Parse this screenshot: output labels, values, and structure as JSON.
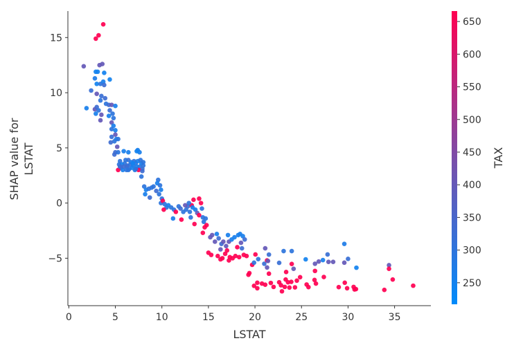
{
  "chart_data": {
    "type": "scatter",
    "title": "",
    "xlabel": "LSTAT",
    "ylabel": [
      "SHAP value for",
      "LSTAT"
    ],
    "xlim": [
      -0.1,
      38.9
    ],
    "ylim": [
      -9.3,
      17.4
    ],
    "xticks": [
      "0",
      "5",
      "10",
      "15",
      "20",
      "25",
      "30",
      "35"
    ],
    "yticks": [
      "15",
      "10",
      "5",
      "0",
      "−5"
    ],
    "grid": false,
    "colorbar": {
      "label": "TAX",
      "range": [
        217,
        666
      ],
      "ticks": [
        "250",
        "300",
        "350",
        "400",
        "450",
        "500",
        "550",
        "600",
        "650"
      ],
      "colors": [
        "#008bfb",
        "#7b4da8",
        "#ff0051"
      ]
    },
    "point_fields": [
      "LSTAT",
      "SHAP",
      "TAX"
    ],
    "points": [
      [
        3.7,
        16.2,
        666
      ],
      [
        3.2,
        15.2,
        666
      ],
      [
        2.9,
        14.9,
        666
      ],
      [
        1.6,
        12.4,
        400
      ],
      [
        3.3,
        12.5,
        400
      ],
      [
        3.6,
        12.6,
        400
      ],
      [
        3.1,
        11.9,
        250
      ],
      [
        2.9,
        11.9,
        250
      ],
      [
        3.8,
        11.8,
        250
      ],
      [
        4.4,
        11.2,
        250
      ],
      [
        2.8,
        11.3,
        270
      ],
      [
        3.0,
        10.8,
        250
      ],
      [
        3.4,
        10.8,
        300
      ],
      [
        3.7,
        11.0,
        260
      ],
      [
        3.8,
        10.7,
        330
      ],
      [
        2.4,
        10.2,
        320
      ],
      [
        3.0,
        9.9,
        400
      ],
      [
        3.5,
        9.7,
        320
      ],
      [
        3.4,
        9.3,
        300
      ],
      [
        3.9,
        9.5,
        330
      ],
      [
        4.0,
        9.0,
        300
      ],
      [
        4.3,
        8.9,
        330
      ],
      [
        4.6,
        8.9,
        400
      ],
      [
        5.0,
        8.8,
        260
      ],
      [
        1.9,
        8.6,
        260
      ],
      [
        2.8,
        8.5,
        400
      ],
      [
        3.0,
        8.7,
        330
      ],
      [
        3.2,
        8.4,
        300
      ],
      [
        4.4,
        8.4,
        320
      ],
      [
        4.7,
        8.1,
        300
      ],
      [
        4.3,
        7.9,
        260
      ],
      [
        2.9,
        8.1,
        260
      ],
      [
        3.5,
        8.0,
        400
      ],
      [
        3.4,
        7.5,
        400
      ],
      [
        4.8,
        7.7,
        300
      ],
      [
        4.6,
        7.3,
        400
      ],
      [
        4.8,
        7.0,
        260
      ],
      [
        4.6,
        6.7,
        300
      ],
      [
        5.0,
        6.6,
        260
      ],
      [
        5.0,
        6.2,
        400
      ],
      [
        4.6,
        6.0,
        320
      ],
      [
        5.1,
        5.8,
        260
      ],
      [
        5.3,
        5.8,
        300
      ],
      [
        4.9,
        5.6,
        300
      ],
      [
        4.5,
        5.5,
        330
      ],
      [
        5.2,
        5.1,
        400
      ],
      [
        5.0,
        4.6,
        330
      ],
      [
        4.9,
        4.4,
        330
      ],
      [
        5.3,
        4.6,
        300
      ],
      [
        5.9,
        4.7,
        260
      ],
      [
        6.4,
        4.6,
        260
      ],
      [
        7.4,
        4.8,
        260
      ],
      [
        7.6,
        4.6,
        260
      ],
      [
        7.3,
        4.7,
        250
      ],
      [
        5.4,
        3.5,
        300
      ],
      [
        5.6,
        3.2,
        280
      ],
      [
        5.5,
        3.8,
        300
      ],
      [
        5.8,
        3.0,
        260
      ],
      [
        6.0,
        3.6,
        300
      ],
      [
        6.2,
        3.3,
        280
      ],
      [
        6.4,
        3.9,
        320
      ],
      [
        6.5,
        3.1,
        300
      ],
      [
        6.7,
        3.7,
        260
      ],
      [
        6.9,
        3.4,
        300
      ],
      [
        7.1,
        3.0,
        280
      ],
      [
        7.2,
        3.6,
        300
      ],
      [
        7.4,
        3.8,
        260
      ],
      [
        7.6,
        3.3,
        300
      ],
      [
        7.8,
        3.6,
        260
      ],
      [
        8.0,
        3.7,
        300
      ],
      [
        7.9,
        3.1,
        330
      ],
      [
        5.3,
        3.0,
        666
      ],
      [
        5.7,
        3.5,
        260
      ],
      [
        6.1,
        3.9,
        300
      ],
      [
        6.3,
        3.4,
        330
      ],
      [
        6.6,
        3.5,
        300
      ],
      [
        6.8,
        3.2,
        260
      ],
      [
        7.0,
        3.8,
        300
      ],
      [
        7.3,
        3.3,
        260
      ],
      [
        7.5,
        3.0,
        666
      ],
      [
        7.7,
        3.9,
        300
      ],
      [
        5.9,
        3.3,
        330
      ],
      [
        6.4,
        3.0,
        300
      ],
      [
        7.2,
        3.1,
        300
      ],
      [
        7.9,
        2.9,
        330
      ],
      [
        7.8,
        2.4,
        300
      ],
      [
        6.9,
        3.6,
        250
      ],
      [
        6.2,
        3.0,
        300
      ],
      [
        5.5,
        3.3,
        330
      ],
      [
        8.0,
        3.4,
        300
      ],
      [
        8.1,
        1.5,
        300
      ],
      [
        8.3,
        1.2,
        260
      ],
      [
        8.2,
        0.8,
        260
      ],
      [
        8.6,
        1.3,
        300
      ],
      [
        8.9,
        1.4,
        300
      ],
      [
        8.7,
        0.5,
        330
      ],
      [
        9.1,
        1.5,
        300
      ],
      [
        9.4,
        1.1,
        330
      ],
      [
        9.6,
        2.1,
        300
      ],
      [
        9.5,
        1.8,
        260
      ],
      [
        9.8,
        1.6,
        300
      ],
      [
        9.9,
        1.2,
        260
      ],
      [
        9.7,
        0.8,
        300
      ],
      [
        10.0,
        0.4,
        300
      ],
      [
        9.9,
        0.0,
        300
      ],
      [
        10.1,
        0.2,
        666
      ],
      [
        10.3,
        -0.1,
        300
      ],
      [
        10.5,
        -0.4,
        300
      ],
      [
        10.2,
        -0.6,
        666
      ],
      [
        10.7,
        -0.2,
        260
      ],
      [
        11.0,
        -0.4,
        300
      ],
      [
        11.3,
        -0.6,
        300
      ],
      [
        11.2,
        -1.4,
        260
      ],
      [
        11.5,
        -0.8,
        666
      ],
      [
        11.8,
        -0.3,
        300
      ],
      [
        12.0,
        -0.5,
        330
      ],
      [
        12.1,
        -1.5,
        666
      ],
      [
        12.3,
        -0.8,
        300
      ],
      [
        12.6,
        -0.6,
        300
      ],
      [
        12.8,
        -0.3,
        330
      ],
      [
        13.0,
        -0.8,
        300
      ],
      [
        13.1,
        -1.3,
        300
      ],
      [
        13.2,
        -0.2,
        666
      ],
      [
        13.4,
        0.3,
        666
      ],
      [
        13.5,
        -1.9,
        666
      ],
      [
        13.6,
        -0.6,
        260
      ],
      [
        13.8,
        -0.9,
        400
      ],
      [
        14.0,
        0.4,
        666
      ],
      [
        14.2,
        0.0,
        666
      ],
      [
        14.3,
        -0.5,
        300
      ],
      [
        14.0,
        -1.1,
        666
      ],
      [
        14.4,
        -1.3,
        300
      ],
      [
        14.5,
        -1.7,
        300
      ],
      [
        14.7,
        -1.4,
        300
      ],
      [
        14.8,
        -2.0,
        666
      ],
      [
        14.6,
        -2.2,
        666
      ],
      [
        14.4,
        -2.7,
        666
      ],
      [
        12.9,
        0.0,
        300
      ],
      [
        13.3,
        -0.4,
        260
      ],
      [
        12.5,
        -0.2,
        400
      ],
      [
        15.2,
        -3.1,
        400
      ],
      [
        15.4,
        -2.9,
        400
      ],
      [
        15.7,
        -3.5,
        400
      ],
      [
        15.9,
        -2.8,
        260
      ],
      [
        16.1,
        -3.2,
        330
      ],
      [
        16.4,
        -3.7,
        330
      ],
      [
        16.3,
        -4.2,
        400
      ],
      [
        16.6,
        -3.5,
        400
      ],
      [
        16.9,
        -3.9,
        400
      ],
      [
        17.2,
        -3.5,
        400
      ],
      [
        17.1,
        -2.9,
        260
      ],
      [
        17.5,
        -3.3,
        260
      ],
      [
        17.8,
        -3.1,
        260
      ],
      [
        18.2,
        -2.9,
        260
      ],
      [
        18.4,
        -2.8,
        260
      ],
      [
        18.7,
        -3.0,
        260
      ],
      [
        18.9,
        -3.3,
        330
      ],
      [
        18.5,
        -3.6,
        400
      ],
      [
        18.1,
        -4.0,
        666
      ],
      [
        18.6,
        -4.1,
        330
      ],
      [
        15.0,
        -4.5,
        666
      ],
      [
        15.3,
        -4.7,
        666
      ],
      [
        16.0,
        -4.8,
        666
      ],
      [
        16.5,
        -5.0,
        666
      ],
      [
        16.8,
        -4.6,
        666
      ],
      [
        17.0,
        -4.3,
        666
      ],
      [
        17.3,
        -4.9,
        666
      ],
      [
        17.6,
        -5.0,
        666
      ],
      [
        17.9,
        -4.8,
        666
      ],
      [
        18.3,
        -4.9,
        666
      ],
      [
        18.8,
        -4.7,
        666
      ],
      [
        19.1,
        -4.8,
        666
      ],
      [
        16.3,
        -5.1,
        666
      ],
      [
        17.2,
        -5.2,
        666
      ],
      [
        20.05,
        -4.66,
        666
      ],
      [
        19.7,
        -5.6,
        666
      ],
      [
        19.9,
        -5.4,
        300
      ],
      [
        20.35,
        -5.08,
        300
      ],
      [
        21.1,
        -4.1,
        400
      ],
      [
        21.5,
        -4.67,
        320
      ],
      [
        21.0,
        -5.5,
        320
      ],
      [
        21.3,
        -5.2,
        666
      ],
      [
        21.4,
        -5.25,
        400
      ],
      [
        21.3,
        -5.84,
        400
      ],
      [
        21.5,
        -6.4,
        666
      ],
      [
        23.08,
        -4.35,
        300
      ],
      [
        23.95,
        -4.35,
        300
      ],
      [
        22.6,
        -5.42,
        320
      ],
      [
        23.95,
        -5.52,
        666
      ],
      [
        24.15,
        -5.96,
        400
      ],
      [
        23.35,
        -6.25,
        666
      ],
      [
        25.45,
        -5.1,
        250
      ],
      [
        26.45,
        -5.5,
        400
      ],
      [
        26.85,
        -5.3,
        400
      ],
      [
        27.3,
        -5.17,
        260
      ],
      [
        27.8,
        -4.66,
        320
      ],
      [
        27.9,
        -5.33,
        400
      ],
      [
        28.4,
        -5.33,
        400
      ],
      [
        29.6,
        -3.7,
        270
      ],
      [
        29.6,
        -5.4,
        400
      ],
      [
        30.0,
        -5.06,
        320
      ],
      [
        30.9,
        -5.86,
        250
      ],
      [
        26.45,
        -6.15,
        666
      ],
      [
        27.4,
        -6.7,
        666
      ],
      [
        34.4,
        -5.63,
        400
      ],
      [
        34.4,
        -5.96,
        666
      ],
      [
        34.8,
        -6.93,
        666
      ],
      [
        37.0,
        -7.49,
        666
      ],
      [
        33.9,
        -7.87,
        666
      ],
      [
        19.3,
        -6.5,
        666
      ],
      [
        19.4,
        -6.35,
        666
      ],
      [
        19.9,
        -7.5,
        666
      ],
      [
        20.25,
        -7.22,
        666
      ],
      [
        20.25,
        -7.72,
        666
      ],
      [
        20.75,
        -7.3,
        666
      ],
      [
        21.1,
        -7.4,
        666
      ],
      [
        21.7,
        -7.24,
        666
      ],
      [
        22.0,
        -7.6,
        666
      ],
      [
        22.6,
        -7.18,
        666
      ],
      [
        22.8,
        -7.45,
        666
      ],
      [
        22.9,
        -8.0,
        666
      ],
      [
        23.2,
        -7.6,
        666
      ],
      [
        23.3,
        -6.93,
        666
      ],
      [
        23.55,
        -7.18,
        666
      ],
      [
        23.7,
        -7.66,
        666
      ],
      [
        23.9,
        -7.14,
        666
      ],
      [
        24.3,
        -7.64,
        666
      ],
      [
        24.5,
        -7.03,
        666
      ],
      [
        24.85,
        -6.72,
        666
      ],
      [
        25.55,
        -7.38,
        666
      ],
      [
        25.75,
        -7.62,
        666
      ],
      [
        26.4,
        -6.97,
        666
      ],
      [
        26.55,
        -7.3,
        666
      ],
      [
        29.0,
        -7.62,
        666
      ],
      [
        29.65,
        -7.22,
        666
      ],
      [
        29.9,
        -7.72,
        666
      ],
      [
        30.6,
        -7.6,
        666
      ],
      [
        30.7,
        -7.83,
        666
      ],
      [
        30.85,
        -7.8,
        666
      ]
    ]
  }
}
